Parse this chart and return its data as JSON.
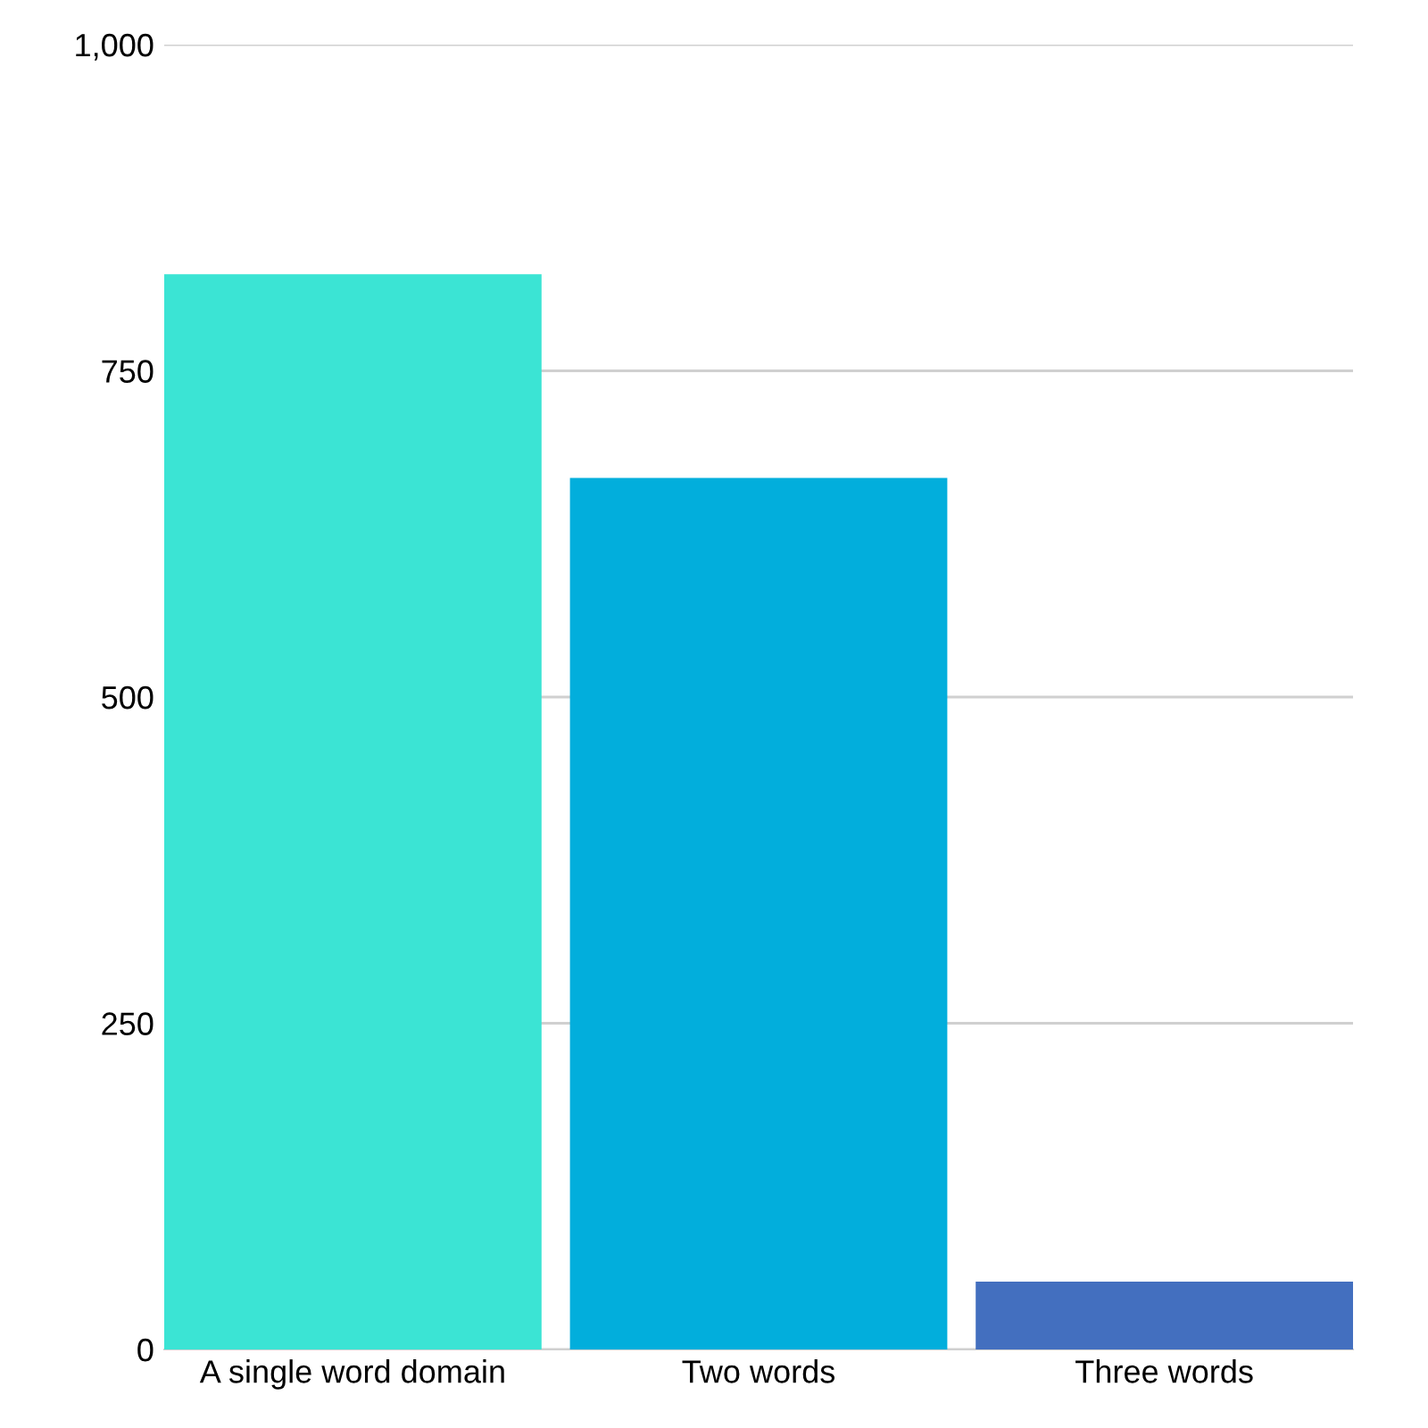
{
  "chart_data": {
    "type": "bar",
    "categories": [
      "A single word domain",
      "Two words",
      "Three words"
    ],
    "values": [
      824,
      668,
      52
    ],
    "colors": [
      "#3be4d4",
      "#02aedc",
      "#436fbf"
    ],
    "ylim": [
      0,
      1000
    ],
    "yticks": [
      0,
      250,
      500,
      750,
      {
        "value": 1000,
        "label": "1,000"
      }
    ],
    "grid": "y"
  }
}
